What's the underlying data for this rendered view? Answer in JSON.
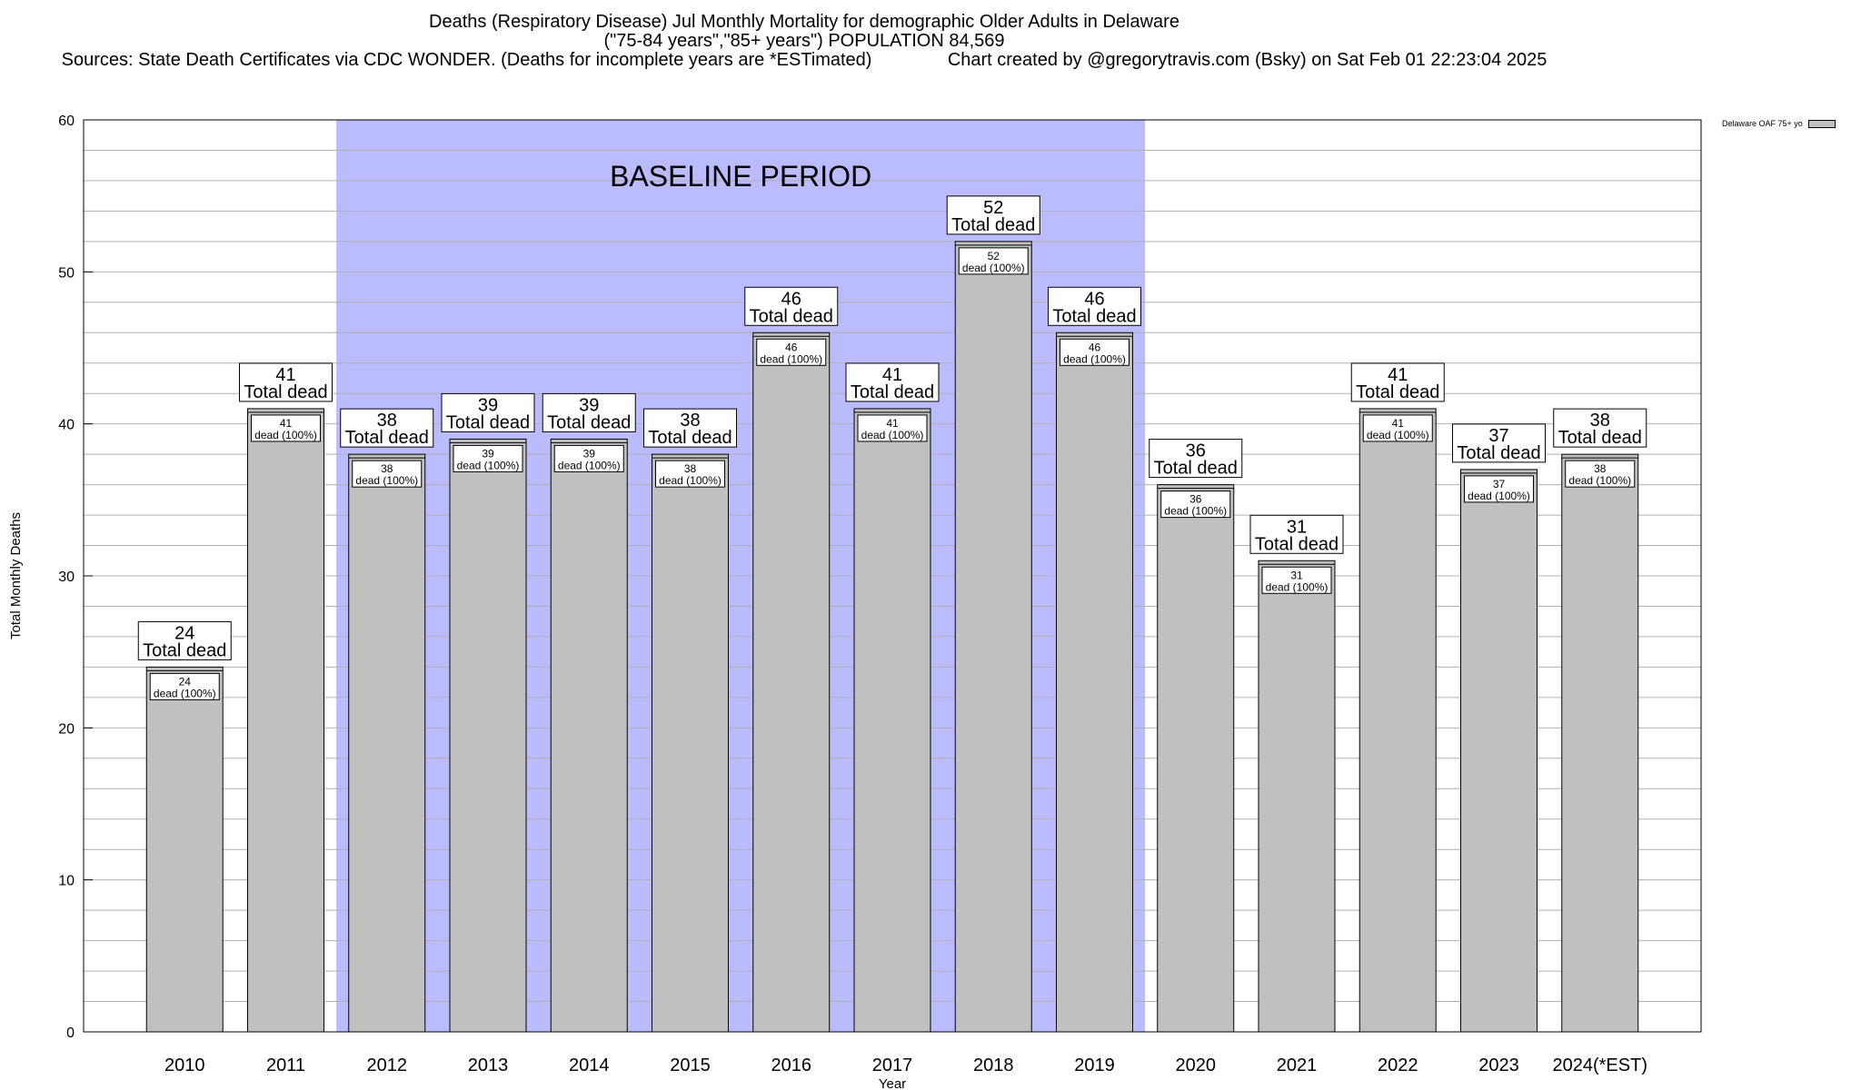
{
  "header": {
    "title": "Deaths (Respiratory Disease) Jul Monthly Mortality for demographic Older Adults in Delaware",
    "subtitle": "(\"75-84 years\",\"85+ years\") POPULATION 84,569",
    "sources": "Sources: State Death Certificates via CDC WONDER. (Deaths for incomplete years are *ESTimated)",
    "credit": "Chart created by @gregorytravis.com (Bsky) on Sat Feb 01 22:23:04 2025"
  },
  "legend": {
    "label": "Delaware OAF 75+ yo"
  },
  "colors": {
    "bar": "#c0c0c0",
    "baseline_band": "#bbbbff",
    "grid": "#b0b0b0"
  },
  "chart_data": {
    "type": "bar",
    "title": "Deaths (Respiratory Disease) Jul Monthly Mortality for demographic Older Adults in Delaware",
    "xlabel": "Year",
    "ylabel": "Total Monthly Deaths",
    "ylim": [
      0,
      60
    ],
    "yticks": [
      0,
      10,
      20,
      30,
      40,
      50,
      60
    ],
    "grid": true,
    "legend_position": "top-right",
    "categories": [
      "2010",
      "2011",
      "2012",
      "2013",
      "2014",
      "2015",
      "2016",
      "2017",
      "2018",
      "2019",
      "2020",
      "2021",
      "2022",
      "2023",
      "2024(*EST)"
    ],
    "series": [
      {
        "name": "Delaware OAF 75+ yo",
        "values": [
          24,
          41,
          38,
          39,
          39,
          38,
          46,
          41,
          52,
          46,
          36,
          31,
          41,
          37,
          38
        ]
      }
    ],
    "top_label_suffix": "Total dead",
    "inner_label_suffix": "dead (100%)",
    "annotation": {
      "text": "BASELINE PERIOD",
      "from": "2012",
      "to": "2019"
    }
  }
}
